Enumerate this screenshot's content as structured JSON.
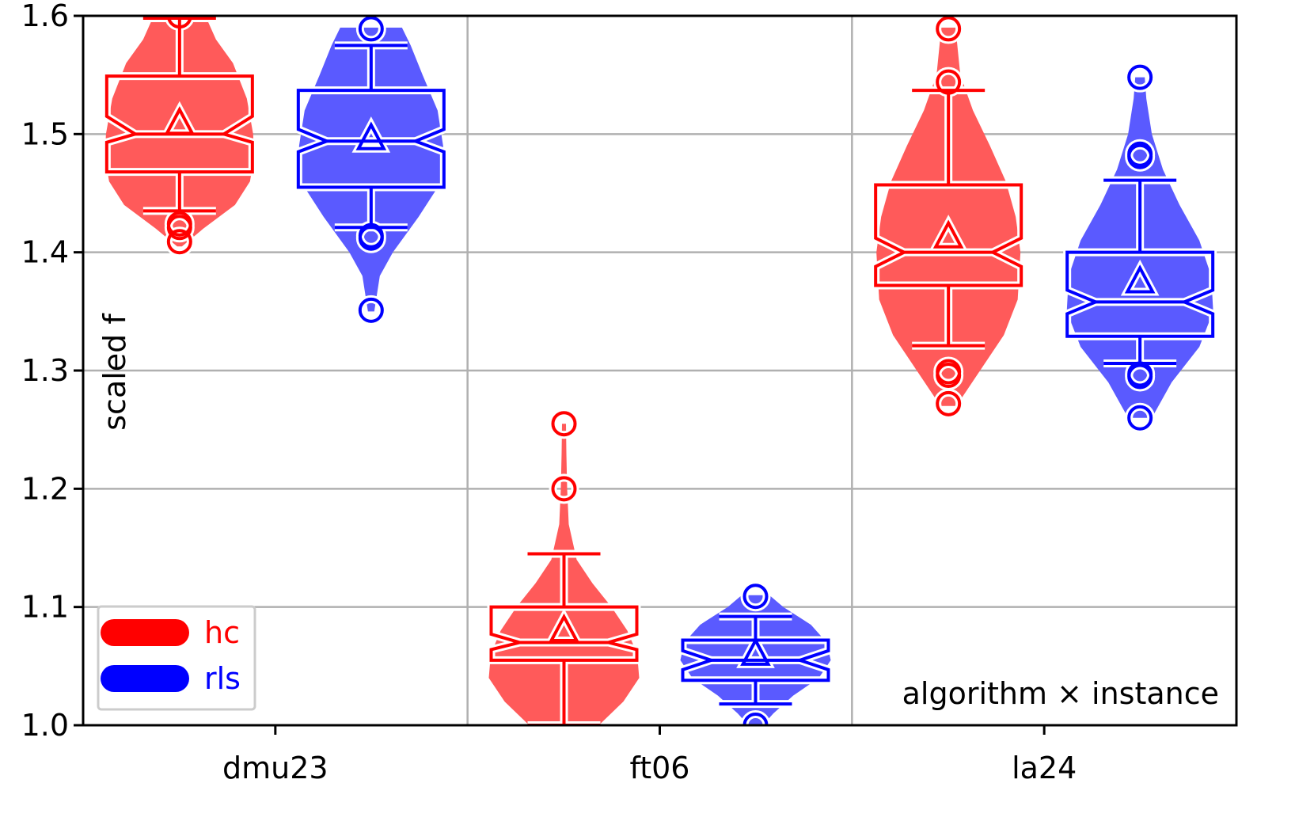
{
  "chart_data": {
    "type": "violin+box",
    "ylabel": "scaled f",
    "ylim": [
      1.0,
      1.6
    ],
    "yticks": [
      "1.0",
      "1.1",
      "1.2",
      "1.3",
      "1.4",
      "1.5",
      "1.6"
    ],
    "categories": [
      "dmu23",
      "ft06",
      "la24"
    ],
    "grid": true,
    "annotation": "algorithm × instance",
    "legend": {
      "placement": "lower-left",
      "entries": [
        {
          "name": "hc",
          "color": "#ff0000"
        },
        {
          "name": "rls",
          "color": "#0000ff"
        }
      ]
    },
    "series": [
      {
        "name": "hc",
        "color": "#ff0000",
        "fill": "#ff5a5a",
        "groups": [
          {
            "instance": "dmu23",
            "min": 1.407,
            "max": 1.6,
            "q1": 1.468,
            "median": 1.5,
            "q3": 1.549,
            "mean": 1.506,
            "notch_lo": 1.493,
            "notch_hi": 1.515,
            "whisker_lo": 1.435,
            "whisker_hi": 1.598,
            "outliers": [
              1.6,
              1.424,
              1.421,
              1.409
            ],
            "violin": [
              [
                1.405,
                6
              ],
              [
                1.42,
                60
              ],
              [
                1.44,
                140
              ],
              [
                1.46,
                178
              ],
              [
                1.48,
                188
              ],
              [
                1.5,
                186
              ],
              [
                1.53,
                170
              ],
              [
                1.56,
                135
              ],
              [
                1.58,
                92
              ],
              [
                1.595,
                72
              ],
              [
                1.6,
                70
              ]
            ]
          },
          {
            "instance": "ft06",
            "min": 1.0,
            "max": 1.255,
            "q1": 1.055,
            "median": 1.07,
            "q3": 1.1,
            "mean": 1.077,
            "notch_lo": 1.064,
            "notch_hi": 1.077,
            "whisker_lo": 1.0,
            "whisker_hi": 1.145,
            "outliers": [
              1.255,
              1.2
            ],
            "violin": [
              [
                1.0,
                88
              ],
              [
                1.02,
                150
              ],
              [
                1.04,
                190
              ],
              [
                1.06,
                185
              ],
              [
                1.08,
                160
              ],
              [
                1.1,
                120
              ],
              [
                1.12,
                72
              ],
              [
                1.14,
                32
              ],
              [
                1.17,
                12
              ],
              [
                1.2,
                8
              ],
              [
                1.23,
                6
              ],
              [
                1.255,
                5
              ]
            ]
          }
        ]
      },
      {
        "name": "rls",
        "color": "#0000ff",
        "fill": "#5a5aff",
        "groups": [
          {
            "instance": "dmu23",
            "min": 1.35,
            "max": 1.59,
            "q1": 1.455,
            "median": 1.494,
            "q3": 1.537,
            "mean": 1.493,
            "notch_lo": 1.485,
            "notch_hi": 1.504,
            "whisker_lo": 1.421,
            "whisker_hi": 1.575,
            "outliers": [
              1.589,
              1.414,
              1.412,
              1.351
            ],
            "violin": [
              [
                1.35,
                8
              ],
              [
                1.38,
                22
              ],
              [
                1.4,
                55
              ],
              [
                1.43,
                120
              ],
              [
                1.46,
                178
              ],
              [
                1.49,
                182
              ],
              [
                1.52,
                168
              ],
              [
                1.55,
                130
              ],
              [
                1.575,
                100
              ],
              [
                1.59,
                78
              ]
            ]
          },
          {
            "instance": "ft06",
            "min": 1.0,
            "max": 1.11,
            "q1": 1.038,
            "median": 1.055,
            "q3": 1.072,
            "mean": 1.057,
            "notch_lo": 1.047,
            "notch_hi": 1.063,
            "whisker_lo": 1.018,
            "whisker_hi": 1.092,
            "outliers": [
              1.109,
              1.0
            ],
            "violin": [
              [
                1.0,
                18
              ],
              [
                1.01,
                45
              ],
              [
                1.025,
                95
              ],
              [
                1.04,
                160
              ],
              [
                1.055,
                190
              ],
              [
                1.07,
                180
              ],
              [
                1.085,
                140
              ],
              [
                1.1,
                70
              ],
              [
                1.11,
                35
              ]
            ]
          }
        ]
      }
    ],
    "la24": {
      "hc": {
        "min": 1.27,
        "max": 1.59,
        "q1": 1.372,
        "median": 1.4,
        "q3": 1.457,
        "mean": 1.41,
        "notch_lo": 1.388,
        "notch_hi": 1.412,
        "whisker_lo": 1.321,
        "whisker_hi": 1.537,
        "outliers": [
          1.589,
          1.544,
          1.299,
          1.296,
          1.272
        ],
        "violin": [
          [
            1.27,
            20
          ],
          [
            1.3,
            80
          ],
          [
            1.33,
            140
          ],
          [
            1.36,
            175
          ],
          [
            1.4,
            182
          ],
          [
            1.43,
            170
          ],
          [
            1.46,
            145
          ],
          [
            1.49,
            105
          ],
          [
            1.52,
            62
          ],
          [
            1.55,
            30
          ],
          [
            1.59,
            18
          ]
        ]
      },
      "rls": {
        "min": 1.26,
        "max": 1.548,
        "q1": 1.329,
        "median": 1.358,
        "q3": 1.4,
        "mean": 1.372,
        "notch_lo": 1.348,
        "notch_hi": 1.368,
        "whisker_lo": 1.306,
        "whisker_hi": 1.461,
        "outliers": [
          1.548,
          1.483,
          1.481,
          1.297,
          1.295,
          1.26
        ],
        "violin": [
          [
            1.26,
            30
          ],
          [
            1.29,
            80
          ],
          [
            1.32,
            150
          ],
          [
            1.35,
            185
          ],
          [
            1.38,
            180
          ],
          [
            1.41,
            150
          ],
          [
            1.44,
            100
          ],
          [
            1.47,
            58
          ],
          [
            1.5,
            30
          ],
          [
            1.53,
            16
          ],
          [
            1.548,
            12
          ]
        ]
      }
    }
  }
}
